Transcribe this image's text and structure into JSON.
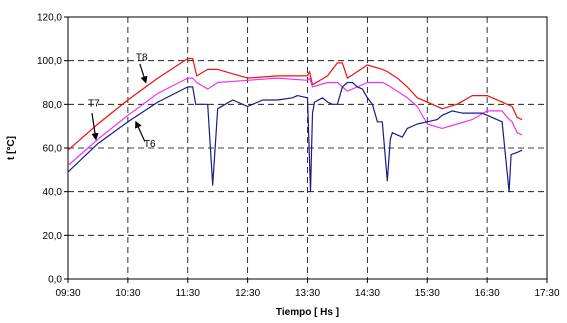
{
  "chart_data": {
    "type": "line",
    "title": "",
    "xlabel": "Tiempo [ Hs ]",
    "ylabel": "t [°C]",
    "xlim": [
      "09:30",
      "17:30"
    ],
    "ylim": [
      0,
      120
    ],
    "x_ticks": [
      "09:30",
      "10:30",
      "11:30",
      "12:30",
      "13:30",
      "14:30",
      "15:30",
      "16:30",
      "17:30"
    ],
    "y_ticks": [
      "0,0",
      "20,0",
      "40,0",
      "60,0",
      "80,0",
      "100,0",
      "120,0"
    ],
    "grid": true,
    "legend": "none (inline labels with arrows)",
    "series": [
      {
        "name": "T8",
        "color": "#ee1111",
        "x": [
          "09:30",
          "10:00",
          "10:30",
          "11:00",
          "11:30",
          "11:35",
          "11:39",
          "11:50",
          "12:00",
          "12:30",
          "13:00",
          "13:30",
          "13:32",
          "13:35",
          "13:50",
          "13:55",
          "14:00",
          "14:05",
          "14:10",
          "14:30",
          "14:45",
          "14:50",
          "15:00",
          "15:10",
          "15:20",
          "15:30",
          "15:45",
          "16:00",
          "16:15",
          "16:30",
          "16:45",
          "16:50",
          "16:55",
          "17:00",
          "17:05"
        ],
        "values": [
          59,
          71,
          82,
          92,
          101,
          101,
          93,
          96,
          96,
          92,
          93,
          93,
          95,
          89,
          93,
          96,
          99,
          99,
          92,
          98,
          96,
          95,
          92,
          88,
          83,
          81,
          78,
          80,
          84,
          84,
          81,
          80,
          79,
          74,
          73
        ]
      },
      {
        "name": "T7",
        "color": "#ee33ee",
        "x": [
          "09:30",
          "10:00",
          "10:30",
          "11:00",
          "11:30",
          "11:35",
          "11:39",
          "11:50",
          "12:00",
          "12:30",
          "13:00",
          "13:30",
          "13:32",
          "13:35",
          "13:50",
          "14:00",
          "14:10",
          "14:30",
          "14:45",
          "14:50",
          "15:00",
          "15:10",
          "15:20",
          "15:30",
          "15:45",
          "16:00",
          "16:15",
          "16:30",
          "16:45",
          "16:50",
          "16:55",
          "17:00",
          "17:05"
        ],
        "values": [
          52,
          64,
          75,
          85,
          92,
          92,
          90,
          87,
          90,
          91,
          92,
          91,
          92,
          88,
          90,
          90,
          86,
          90,
          90,
          89,
          86,
          83,
          79,
          71,
          69,
          71,
          73,
          77,
          77,
          74,
          72,
          67,
          66
        ]
      },
      {
        "name": "T6",
        "color": "#1a1a8a",
        "x": [
          "09:30",
          "10:00",
          "10:30",
          "11:00",
          "11:30",
          "11:35",
          "11:38",
          "11:45",
          "11:50",
          "11:55",
          "12:00",
          "12:15",
          "12:30",
          "12:45",
          "13:00",
          "13:15",
          "13:20",
          "13:30",
          "13:33",
          "13:35",
          "13:37",
          "13:45",
          "13:50",
          "13:55",
          "14:00",
          "14:05",
          "14:10",
          "14:15",
          "14:20",
          "14:25",
          "14:30",
          "14:35",
          "14:40",
          "14:45",
          "14:50",
          "14:53",
          "14:55",
          "15:00",
          "15:05",
          "15:10",
          "15:20",
          "15:30",
          "15:40",
          "15:45",
          "15:55",
          "16:05",
          "16:15",
          "16:25",
          "16:35",
          "16:45",
          "16:52",
          "16:54",
          "17:00",
          "17:05"
        ],
        "values": [
          49,
          62,
          72,
          81,
          88,
          88,
          80,
          80,
          80,
          43,
          78,
          82,
          79,
          82,
          82,
          83,
          84,
          83,
          40,
          76,
          81,
          83,
          81,
          80,
          80,
          88,
          90,
          90,
          88,
          87,
          83,
          80,
          72,
          72,
          45,
          64,
          67,
          66,
          65,
          69,
          71,
          72,
          73,
          75,
          77,
          76,
          76,
          76,
          74,
          72,
          40,
          57,
          58,
          59
        ]
      }
    ],
    "annotations": [
      {
        "text": "T8",
        "series": "T8"
      },
      {
        "text": "T7",
        "series": "T7"
      },
      {
        "text": "T6",
        "series": "T6"
      }
    ]
  }
}
